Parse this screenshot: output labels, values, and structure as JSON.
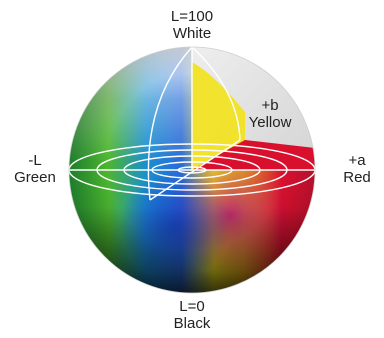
{
  "labels": {
    "top": {
      "line1": "L=100",
      "line2": "White"
    },
    "bottom": {
      "line1": "L=0",
      "line2": "Black"
    },
    "left": {
      "line1": "-L",
      "line2": "Green"
    },
    "right": {
      "line1": "+a",
      "line2": "Red"
    },
    "inner": {
      "line1": "+b",
      "line2": "Yellow"
    }
  },
  "colors": {
    "white": "#f2f2f2",
    "black": "#1a1a1a",
    "green": "#3aa83a",
    "red": "#e0102e",
    "yellow": "#f2e21a",
    "blue": "#1f5fd0",
    "cyan": "#2fa8d8",
    "magenta": "#b4127a",
    "cutaway_grey": "#dedede",
    "line": "#ffffff"
  }
}
